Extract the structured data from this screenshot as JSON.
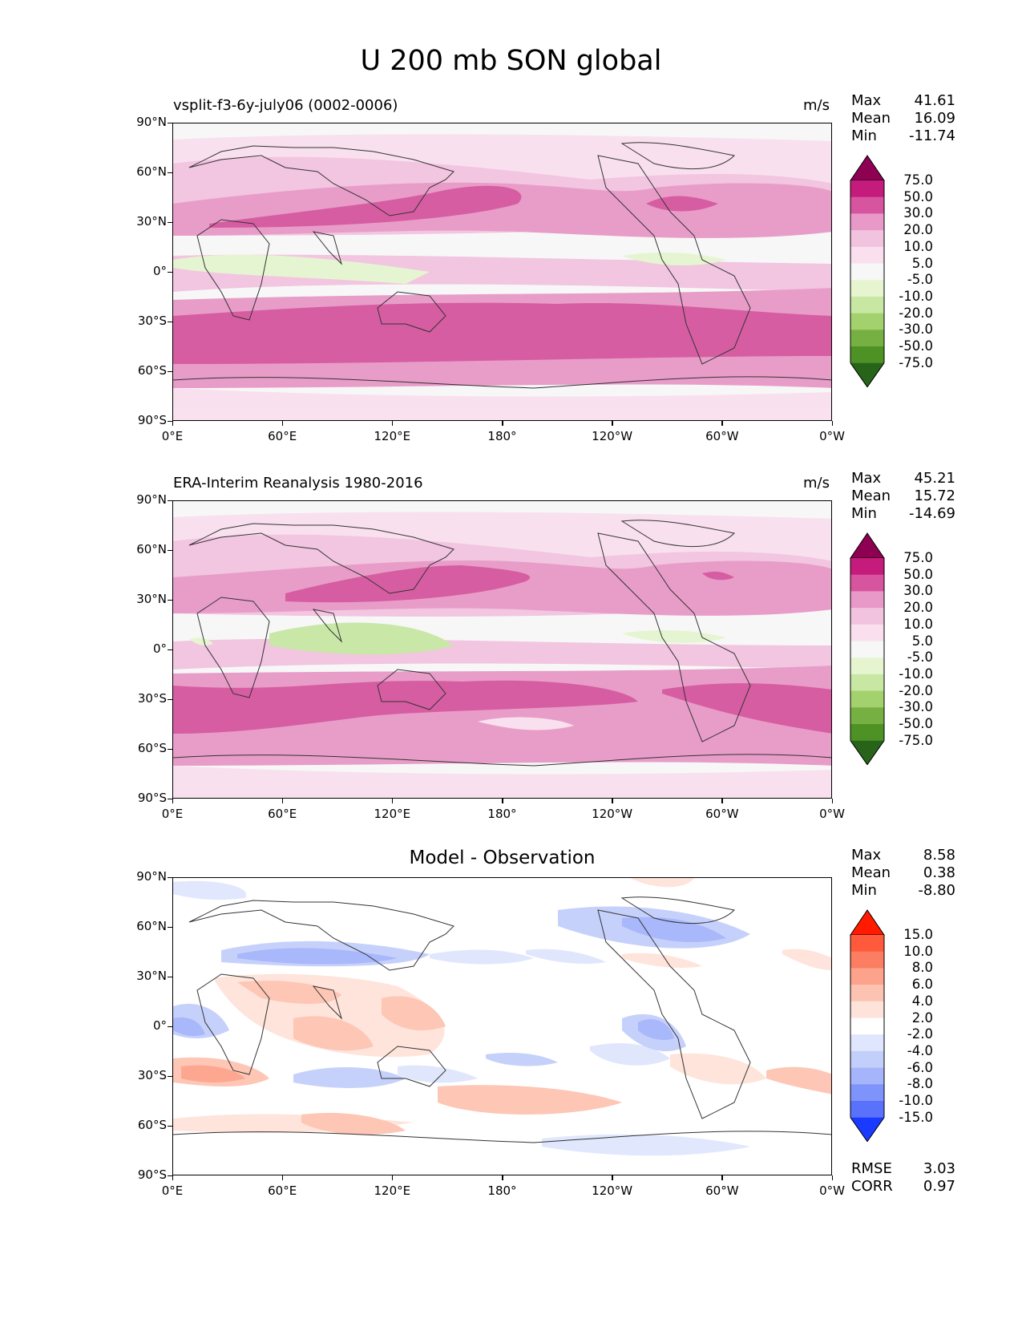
{
  "title": "U 200 mb SON global",
  "chart_data": [
    {
      "type": "heatmap",
      "panel_title": "vsplit-f3-6y-july06 (0002-0006)",
      "units": "m/s",
      "stats": {
        "max_label": "Max",
        "max": "41.61",
        "mean_label": "Mean",
        "mean": "16.09",
        "min_label": "Min",
        "min": "-11.74"
      },
      "x_ticks": [
        "0°E",
        "60°E",
        "120°E",
        "180°",
        "120°W",
        "60°W",
        "0°W"
      ],
      "y_ticks": [
        "90°N",
        "60°N",
        "30°N",
        "0°",
        "30°S",
        "60°S",
        "90°S"
      ],
      "colorbar_levels": [
        "75.0",
        "50.0",
        "30.0",
        "20.0",
        "10.0",
        "5.0",
        "-5.0",
        "-10.0",
        "-20.0",
        "-30.0",
        "-50.0",
        "-75.0"
      ]
    },
    {
      "type": "heatmap",
      "panel_title": "ERA-Interim Reanalysis 1980-2016",
      "units": "m/s",
      "stats": {
        "max_label": "Max",
        "max": "45.21",
        "mean_label": "Mean",
        "mean": "15.72",
        "min_label": "Min",
        "min": "-14.69"
      },
      "x_ticks": [
        "0°E",
        "60°E",
        "120°E",
        "180°",
        "120°W",
        "60°W",
        "0°W"
      ],
      "y_ticks": [
        "90°N",
        "60°N",
        "30°N",
        "0°",
        "30°S",
        "60°S",
        "90°S"
      ],
      "colorbar_levels": [
        "75.0",
        "50.0",
        "30.0",
        "20.0",
        "10.0",
        "5.0",
        "-5.0",
        "-10.0",
        "-20.0",
        "-30.0",
        "-50.0",
        "-75.0"
      ]
    },
    {
      "type": "heatmap",
      "panel_title": "Model - Observation",
      "stats": {
        "max_label": "Max",
        "max": "8.58",
        "mean_label": "Mean",
        "mean": "0.38",
        "min_label": "Min",
        "min": "-8.80"
      },
      "rmse_label": "RMSE",
      "rmse": "3.03",
      "corr_label": "CORR",
      "corr": "0.97",
      "x_ticks": [
        "0°E",
        "60°E",
        "120°E",
        "180°",
        "120°W",
        "60°W",
        "0°W"
      ],
      "y_ticks": [
        "90°N",
        "60°N",
        "30°N",
        "0°",
        "30°S",
        "60°S",
        "90°S"
      ],
      "colorbar_levels": [
        "15.0",
        "10.0",
        "8.0",
        "6.0",
        "4.0",
        "2.0",
        "-2.0",
        "-4.0",
        "-6.0",
        "-8.0",
        "-10.0",
        "-15.0"
      ]
    }
  ],
  "colors": {
    "field_scale": [
      "#8e0152",
      "#c51b7d",
      "#d6559e",
      "#e899c7",
      "#f2c3df",
      "#fadfee",
      "#f7f7f7",
      "#e6f5d0",
      "#c7e7a3",
      "#a2d16d",
      "#77b042",
      "#4e9226",
      "#276419"
    ],
    "diff_scale": [
      "#ff1a00",
      "#ff5a3c",
      "#fb7d62",
      "#fda38c",
      "#fdc3b2",
      "#fee3da",
      "#ffffff",
      "#dfe6fd",
      "#c3cffb",
      "#a5b4fb",
      "#7f94fb",
      "#5a72fb",
      "#1a3bff"
    ]
  }
}
